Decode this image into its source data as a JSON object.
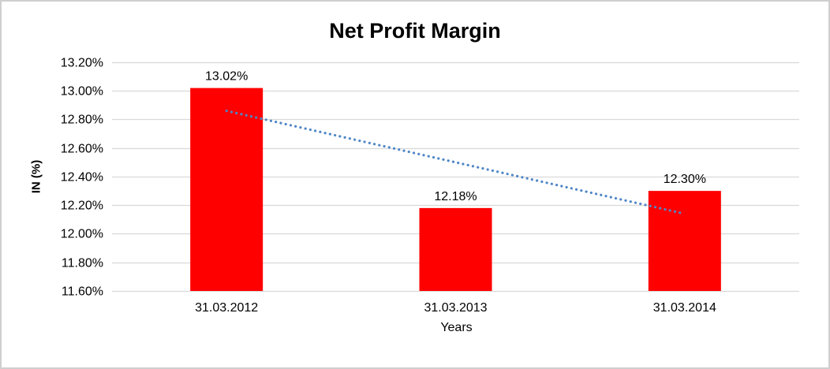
{
  "chart_data": {
    "type": "bar",
    "title": "Net Profit Margin",
    "xlabel": "Years",
    "ylabel": "IN (%)",
    "categories": [
      "31.03.2012",
      "31.03.2013",
      "31.03.2014"
    ],
    "values": [
      13.02,
      12.18,
      12.3
    ],
    "value_labels": [
      "13.02%",
      "12.18%",
      "12.30%"
    ],
    "ylim": [
      11.6,
      13.2
    ],
    "ytick_step": 0.2,
    "ytick_labels": [
      "11.60%",
      "11.80%",
      "12.00%",
      "12.20%",
      "12.40%",
      "12.60%",
      "12.80%",
      "13.00%",
      "13.20%"
    ],
    "grid": true,
    "legend_position": "none",
    "bar_color": "#ff0000",
    "gridline_color": "#d9d9d9",
    "text_color": "#000000",
    "trendline": {
      "type": "linear",
      "style": "dotted",
      "color": "#4f86c6",
      "start_value": 12.86,
      "end_value": 12.14
    }
  }
}
